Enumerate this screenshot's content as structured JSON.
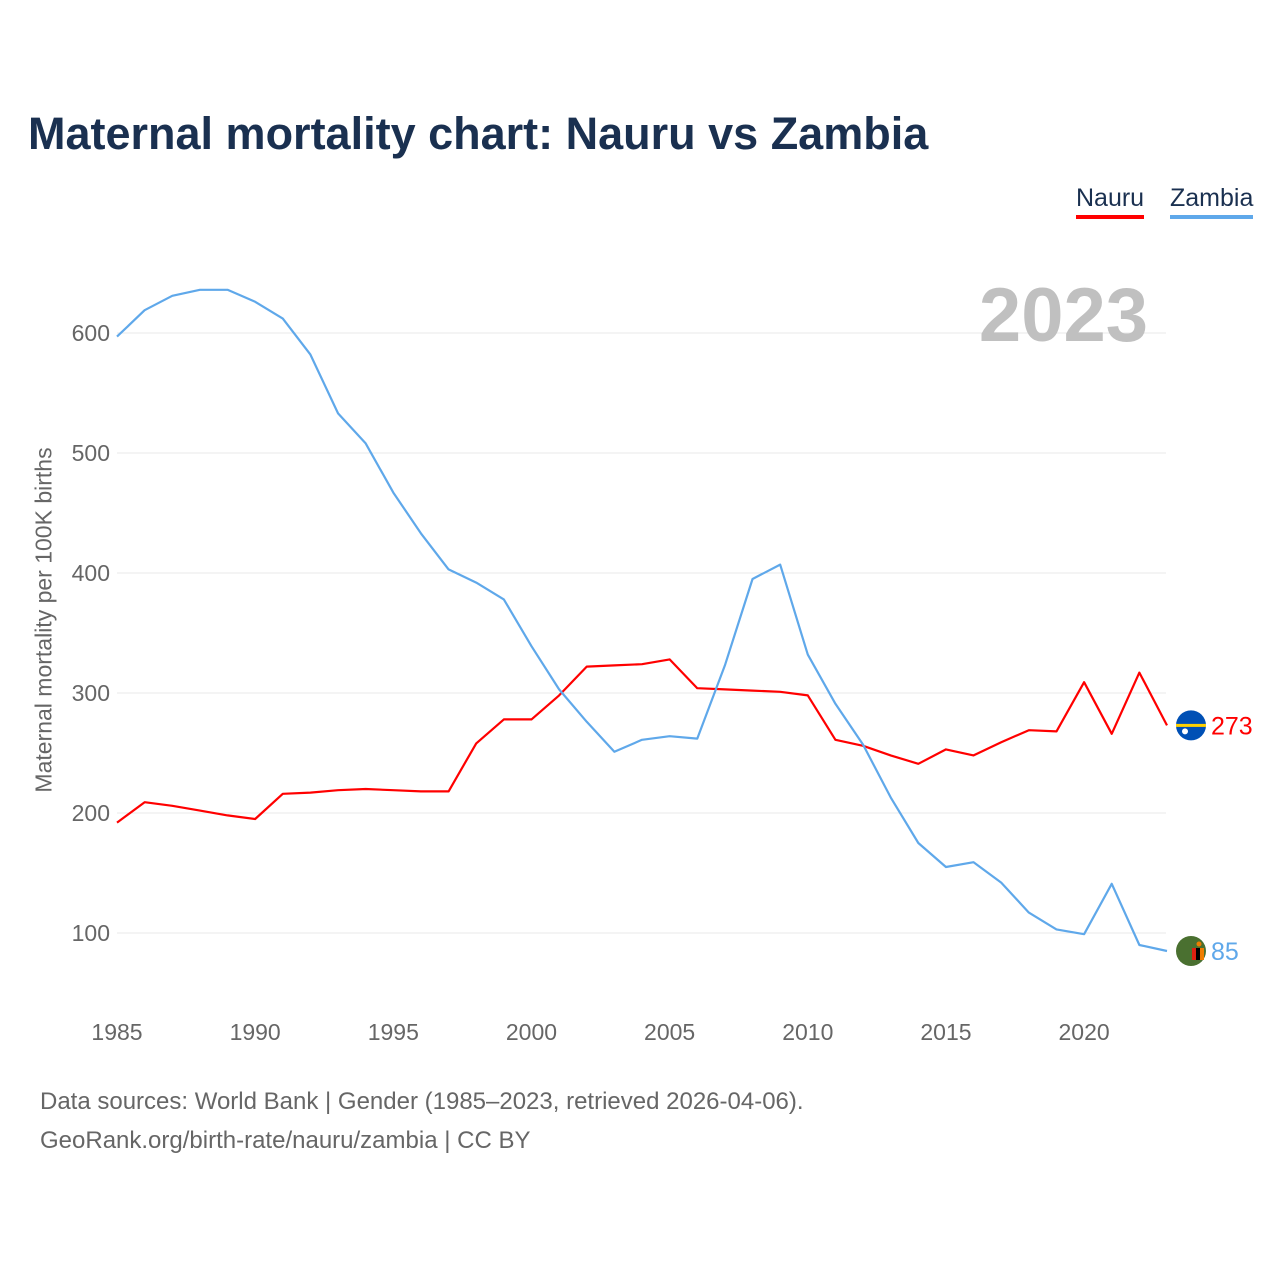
{
  "title": "Maternal mortality chart: Nauru vs Zambia",
  "year_label": "2023",
  "footer": {
    "line1": "Data sources: World Bank | Gender (1985–2023, retrieved 2026-04-06).",
    "line2": "GeoRank.org/birth-rate/nauru/zambia | CC BY"
  },
  "chart_data": {
    "type": "line",
    "title": "Maternal mortality chart: Nauru vs Zambia",
    "ylabel": "Maternal mortality per 100K births",
    "xlabel": "",
    "xlim": [
      1985,
      2023
    ],
    "ylim": [
      50,
      650
    ],
    "xticks": [
      1985,
      1990,
      1995,
      2000,
      2005,
      2010,
      2015,
      2020
    ],
    "yticks": [
      100,
      200,
      300,
      400,
      500,
      600
    ],
    "grid": true,
    "legend": "top-right",
    "x": [
      1985,
      1986,
      1987,
      1988,
      1989,
      1990,
      1991,
      1992,
      1993,
      1994,
      1995,
      1996,
      1997,
      1998,
      1999,
      2000,
      2001,
      2002,
      2003,
      2004,
      2005,
      2006,
      2007,
      2008,
      2009,
      2010,
      2011,
      2012,
      2013,
      2014,
      2015,
      2016,
      2017,
      2018,
      2019,
      2020,
      2021,
      2022,
      2023
    ],
    "series": [
      {
        "name": "Nauru",
        "color": "#ff0000",
        "end_label": "273",
        "values": [
          192,
          209,
          206,
          202,
          198,
          195,
          216,
          217,
          219,
          220,
          219,
          218,
          218,
          258,
          278,
          278,
          298,
          322,
          323,
          324,
          328,
          304,
          303,
          302,
          301,
          298,
          261,
          256,
          248,
          241,
          253,
          248,
          259,
          269,
          268,
          309,
          266,
          317,
          273
        ]
      },
      {
        "name": "Zambia",
        "color": "#5fa8ea",
        "end_label": "85",
        "values": [
          597,
          619,
          631,
          636,
          636,
          626,
          612,
          582,
          533,
          508,
          467,
          433,
          403,
          392,
          378,
          339,
          303,
          276,
          251,
          261,
          264,
          262,
          323,
          395,
          407,
          332,
          291,
          257,
          213,
          175,
          155,
          159,
          142,
          117,
          103,
          99,
          141,
          90,
          85
        ]
      }
    ]
  }
}
